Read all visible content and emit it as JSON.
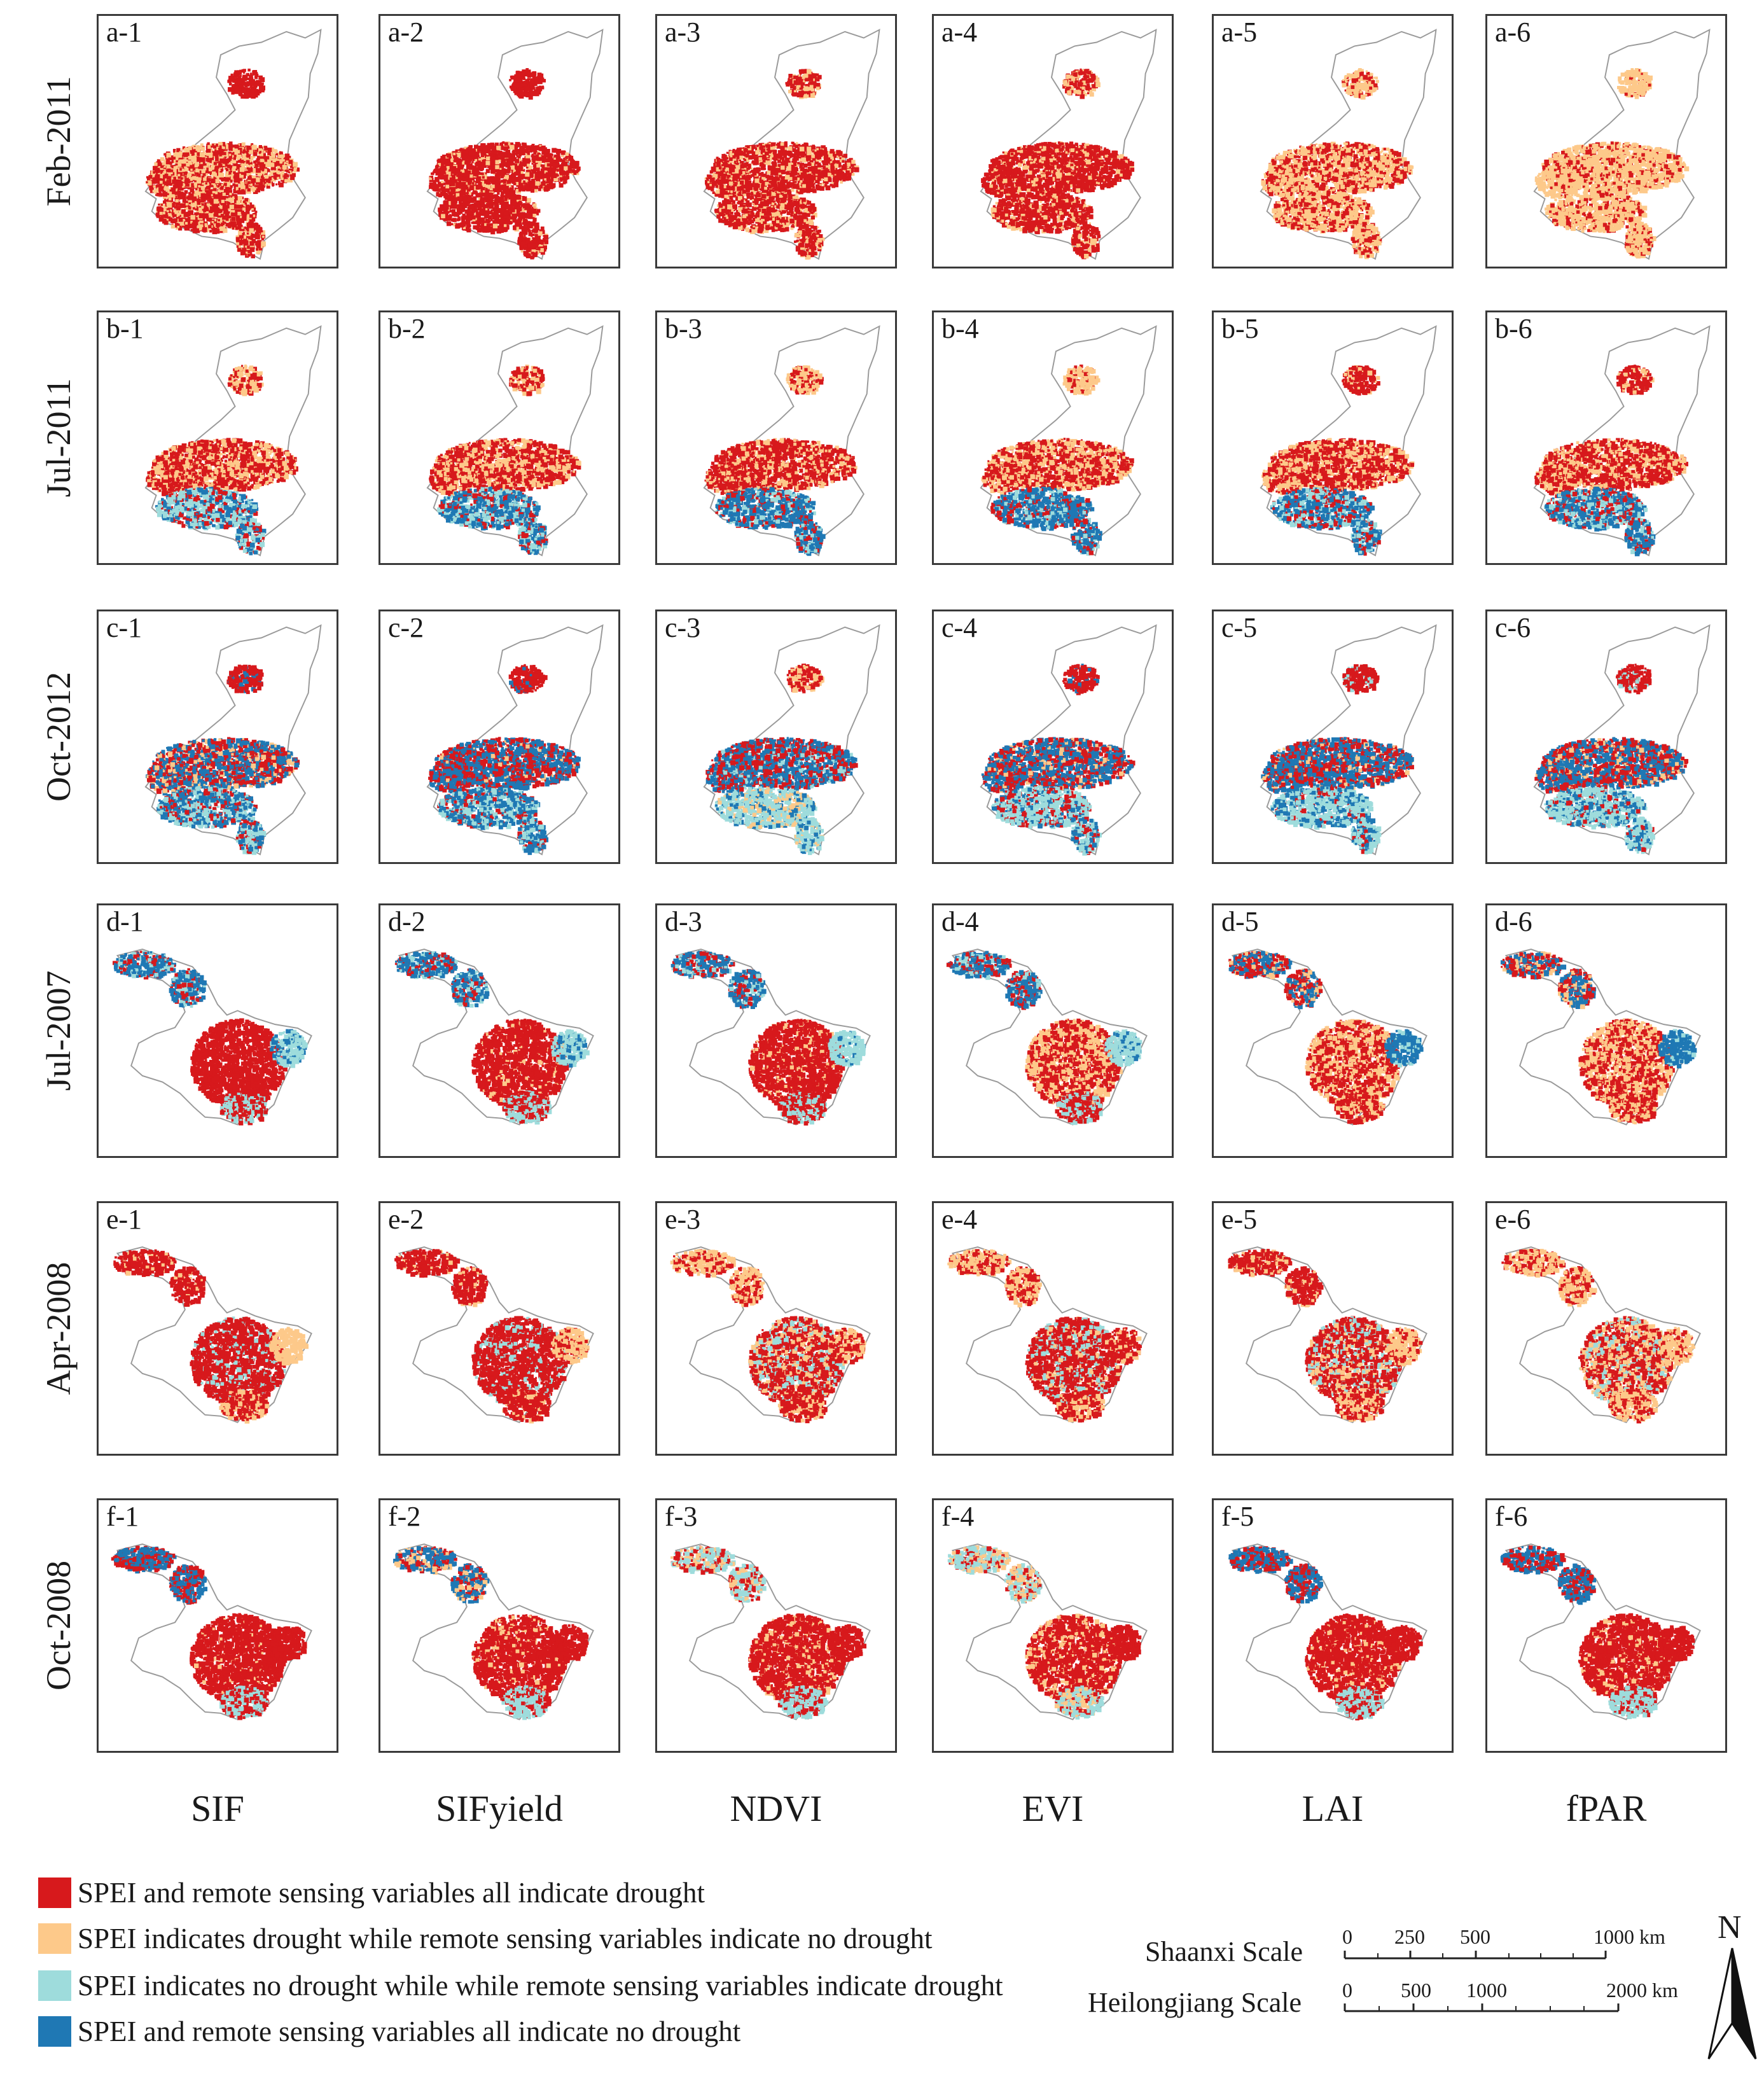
{
  "figure": {
    "rows": [
      {
        "label": "Feb-2011",
        "region": "shaanxi",
        "id": "a"
      },
      {
        "label": "Jul-2011",
        "region": "shaanxi",
        "id": "b"
      },
      {
        "label": "Oct-2012",
        "region": "shaanxi",
        "id": "c"
      },
      {
        "label": "Jul-2007",
        "region": "heilongjiang",
        "id": "d"
      },
      {
        "label": "Apr-2008",
        "region": "heilongjiang",
        "id": "e"
      },
      {
        "label": "Oct-2008",
        "region": "heilongjiang",
        "id": "f"
      }
    ],
    "columns": [
      "SIF",
      "SIFyield",
      "NDVI",
      "EVI",
      "LAI",
      "fPAR"
    ],
    "panel_labels": [
      [
        "a-1",
        "a-2",
        "a-3",
        "a-4",
        "a-5",
        "a-6"
      ],
      [
        "b-1",
        "b-2",
        "b-3",
        "b-4",
        "b-5",
        "b-6"
      ],
      [
        "c-1",
        "c-2",
        "c-3",
        "c-4",
        "c-5",
        "c-6"
      ],
      [
        "d-1",
        "d-2",
        "d-3",
        "d-4",
        "d-5",
        "d-6"
      ],
      [
        "e-1",
        "e-2",
        "e-3",
        "e-4",
        "e-5",
        "e-6"
      ],
      [
        "f-1",
        "f-2",
        "f-3",
        "f-4",
        "f-5",
        "f-6"
      ]
    ]
  },
  "legend": {
    "items": [
      {
        "color": "#d7191c",
        "label": "SPEI and remote sensing variables all indicate drought"
      },
      {
        "color": "#fdc98a",
        "label": "SPEI indicates drought while remote sensing variables indicate no drought"
      },
      {
        "color": "#9edcdc",
        "label": "SPEI indicates no drought while while remote sensing variables indicate drought"
      },
      {
        "color": "#1f78b4",
        "label": "SPEI and remote sensing variables all indicate no drought"
      }
    ]
  },
  "scales": {
    "shaanxi": {
      "name": "Shaanxi Scale",
      "ticks": [
        "0",
        "250",
        "500",
        "1000 km"
      ]
    },
    "heilongjiang": {
      "name": "Heilongjiang Scale",
      "ticks": [
        "0",
        "500",
        "1000",
        "2000 km"
      ]
    }
  },
  "north_arrow": {
    "label": "N"
  },
  "colors": {
    "outline": "#9a9a9a",
    "frame": "#3a3a3a"
  }
}
